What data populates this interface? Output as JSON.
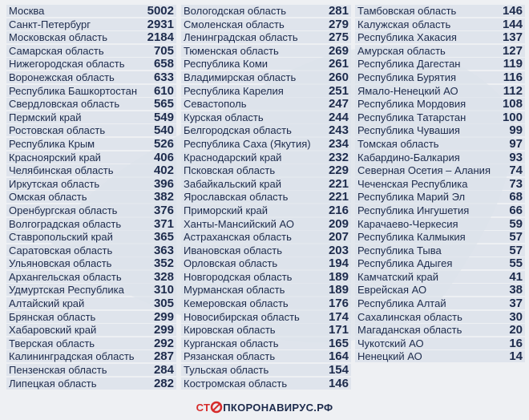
{
  "columns": [
    {
      "rows": [
        {
          "name": "Москва",
          "value": 5002
        },
        {
          "name": "Санкт-Петербург",
          "value": 2931
        },
        {
          "name": "Московская область",
          "value": 2184
        },
        {
          "name": "Самарская область",
          "value": 705
        },
        {
          "name": "Нижегородская область",
          "value": 658
        },
        {
          "name": "Воронежская область",
          "value": 633
        },
        {
          "name": "Республика Башкортостан",
          "value": 610
        },
        {
          "name": "Свердловская область",
          "value": 565
        },
        {
          "name": "Пермский край",
          "value": 549
        },
        {
          "name": "Ростовская область",
          "value": 540
        },
        {
          "name": "Республика Крым",
          "value": 526
        },
        {
          "name": "Красноярский край",
          "value": 406
        },
        {
          "name": "Челябинская область",
          "value": 402
        },
        {
          "name": "Иркутская область",
          "value": 396
        },
        {
          "name": "Омская область",
          "value": 382
        },
        {
          "name": "Оренбургская область",
          "value": 376
        },
        {
          "name": "Волгоградская область",
          "value": 371
        },
        {
          "name": "Ставропольский край",
          "value": 365
        },
        {
          "name": "Саратовская область",
          "value": 363
        },
        {
          "name": "Ульяновская область",
          "value": 352
        },
        {
          "name": "Архангельская область",
          "value": 328
        },
        {
          "name": "Удмуртская Республика",
          "value": 310
        },
        {
          "name": "Алтайский край",
          "value": 305
        },
        {
          "name": "Брянская область",
          "value": 299
        },
        {
          "name": "Хабаровский край",
          "value": 299
        },
        {
          "name": "Тверская область",
          "value": 292
        },
        {
          "name": "Калининградская область",
          "value": 287
        },
        {
          "name": "Пензенская область",
          "value": 284
        },
        {
          "name": "Липецкая область",
          "value": 282
        }
      ]
    },
    {
      "rows": [
        {
          "name": "Вологодская область",
          "value": 281
        },
        {
          "name": "Смоленская область",
          "value": 279
        },
        {
          "name": "Ленинградская область",
          "value": 275
        },
        {
          "name": "Тюменская область",
          "value": 269
        },
        {
          "name": "Республика Коми",
          "value": 261
        },
        {
          "name": "Владимирская область",
          "value": 260
        },
        {
          "name": "Республика Карелия",
          "value": 251
        },
        {
          "name": "Севастополь",
          "value": 247
        },
        {
          "name": "Курская область",
          "value": 244
        },
        {
          "name": "Белгородская область",
          "value": 243
        },
        {
          "name": "Республика Саха (Якутия)",
          "value": 234
        },
        {
          "name": "Краснодарский край",
          "value": 232
        },
        {
          "name": "Псковская область",
          "value": 229
        },
        {
          "name": "Забайкальский край",
          "value": 221
        },
        {
          "name": "Ярославская область",
          "value": 221
        },
        {
          "name": "Приморский край",
          "value": 216
        },
        {
          "name": "Ханты-Мансийский АО",
          "value": 209
        },
        {
          "name": "Астраханская область",
          "value": 207
        },
        {
          "name": "Ивановская область",
          "value": 203
        },
        {
          "name": "Орловская область",
          "value": 194
        },
        {
          "name": "Новгородская область",
          "value": 189
        },
        {
          "name": "Мурманская область",
          "value": 189
        },
        {
          "name": "Кемеровская область",
          "value": 176
        },
        {
          "name": "Новосибирская область",
          "value": 174
        },
        {
          "name": "Кировская область",
          "value": 171
        },
        {
          "name": "Курганская область",
          "value": 165
        },
        {
          "name": "Рязанская область",
          "value": 164
        },
        {
          "name": "Тульская область",
          "value": 154
        },
        {
          "name": "Костромская область",
          "value": 146
        }
      ]
    },
    {
      "rows": [
        {
          "name": "Тамбовская область",
          "value": 146
        },
        {
          "name": "Калужская область",
          "value": 144
        },
        {
          "name": "Республика Хакасия",
          "value": 137
        },
        {
          "name": "Амурская область",
          "value": 127
        },
        {
          "name": "Республика Дагестан",
          "value": 119
        },
        {
          "name": "Республика Бурятия",
          "value": 116
        },
        {
          "name": "Ямало-Ненецкий АО",
          "value": 112
        },
        {
          "name": "Республика Мордовия",
          "value": 108
        },
        {
          "name": "Республика Татарстан",
          "value": 100
        },
        {
          "name": "Республика Чувашия",
          "value": 99
        },
        {
          "name": "Томская область",
          "value": 97
        },
        {
          "name": "Кабардино-Балкария",
          "value": 93
        },
        {
          "name": "Северная Осетия – Алания",
          "value": 74
        },
        {
          "name": "Чеченская Республика",
          "value": 73
        },
        {
          "name": "Республика Марий Эл",
          "value": 68
        },
        {
          "name": "Республика Ингушетия",
          "value": 66
        },
        {
          "name": "Карачаево-Черкесия",
          "value": 59
        },
        {
          "name": "Республика Калмыкия",
          "value": 57
        },
        {
          "name": "Республика Тыва",
          "value": 57
        },
        {
          "name": "Республика Адыгея",
          "value": 55
        },
        {
          "name": "Камчатский край",
          "value": 41
        },
        {
          "name": "Еврейская АО",
          "value": 38
        },
        {
          "name": "Республика Алтай",
          "value": 37
        },
        {
          "name": "Сахалинская область",
          "value": 30
        },
        {
          "name": "Магаданская область",
          "value": 20
        },
        {
          "name": "Чукотский АО",
          "value": 16
        },
        {
          "name": "Ненецкий АО",
          "value": 14
        }
      ]
    }
  ],
  "footer": {
    "logo_start": "СТ",
    "logo_end": "ПКОРОНАВИРУС.РФ"
  }
}
